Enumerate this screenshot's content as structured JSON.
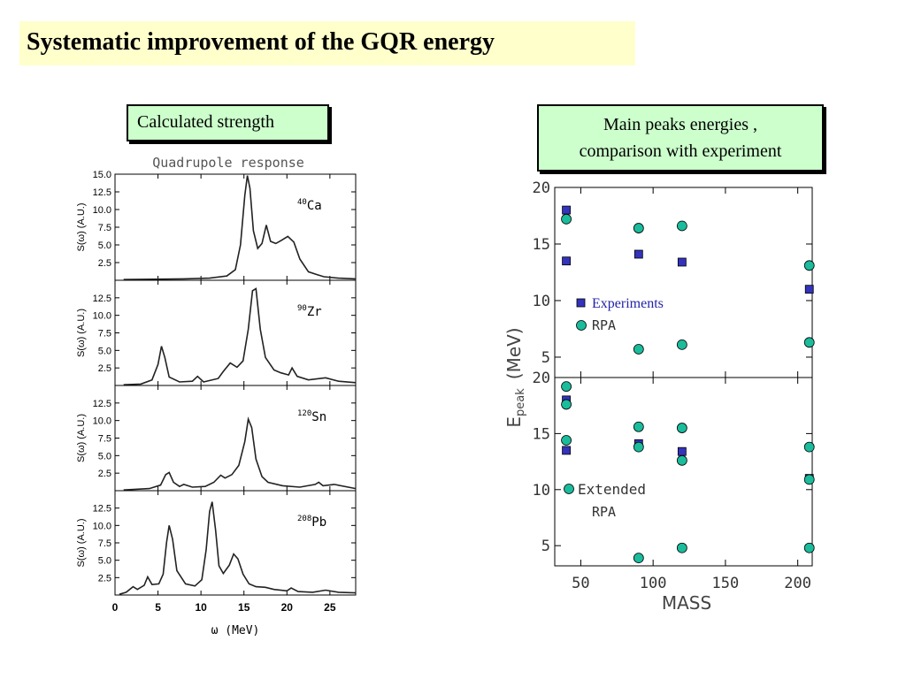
{
  "page": {
    "title": "Systematic improvement of the GQR energy",
    "left_label": "Calculated strength",
    "right_label_line1": "Main peaks energies ,",
    "right_label_line2": "comparison with experiment"
  },
  "chart_data": [
    {
      "type": "line",
      "title": "Quadrupole response",
      "xlabel": "ω (MeV)",
      "ylabel": "S(ω) (A.U.)",
      "xlim": [
        0,
        28
      ],
      "ylim": [
        0,
        15
      ],
      "x_ticks": [
        "0",
        "5",
        "10",
        "15",
        "20",
        "25"
      ],
      "y_ticks": [
        "2.5",
        "5.0",
        "7.5",
        "10.0",
        "12.5",
        "15.0"
      ],
      "panels": [
        {
          "name_sup": "40",
          "name": "Ca",
          "points": [
            [
              1,
              0.1
            ],
            [
              8,
              0.2
            ],
            [
              11,
              0.3
            ],
            [
              13,
              0.6
            ],
            [
              14,
              1.5
            ],
            [
              14.6,
              5
            ],
            [
              15.1,
              12
            ],
            [
              15.4,
              14.8
            ],
            [
              15.7,
              13
            ],
            [
              16.1,
              7
            ],
            [
              16.6,
              4.5
            ],
            [
              17.1,
              5.2
            ],
            [
              17.6,
              7.8
            ],
            [
              18.1,
              5.5
            ],
            [
              18.7,
              5.2
            ],
            [
              19.3,
              5.6
            ],
            [
              20.1,
              6.2
            ],
            [
              20.8,
              5.4
            ],
            [
              21.5,
              3
            ],
            [
              22.5,
              1.2
            ],
            [
              23.5,
              0.8
            ],
            [
              24.3,
              0.5
            ],
            [
              26,
              0.3
            ],
            [
              28,
              0.2
            ]
          ]
        },
        {
          "name_sup": "90",
          "name": "Zr",
          "points": [
            [
              1,
              0.1
            ],
            [
              3,
              0.2
            ],
            [
              4.3,
              0.8
            ],
            [
              5,
              3
            ],
            [
              5.4,
              5.6
            ],
            [
              5.8,
              4
            ],
            [
              6.3,
              1.2
            ],
            [
              7.5,
              0.5
            ],
            [
              9,
              0.6
            ],
            [
              9.6,
              1.3
            ],
            [
              10.3,
              0.5
            ],
            [
              12,
              1
            ],
            [
              12.6,
              2
            ],
            [
              13.4,
              3.2
            ],
            [
              14.2,
              2.6
            ],
            [
              14.9,
              3.5
            ],
            [
              15.5,
              8
            ],
            [
              16.0,
              13.5
            ],
            [
              16.4,
              13.8
            ],
            [
              16.9,
              8
            ],
            [
              17.5,
              4
            ],
            [
              18.5,
              2.2
            ],
            [
              19.3,
              1.8
            ],
            [
              20.2,
              1.5
            ],
            [
              20.6,
              2.5
            ],
            [
              21.2,
              1.3
            ],
            [
              22.5,
              0.8
            ],
            [
              24.5,
              1.1
            ],
            [
              26,
              0.6
            ],
            [
              28,
              0.4
            ]
          ]
        },
        {
          "name_sup": "120",
          "name": "Sn",
          "points": [
            [
              1,
              0.1
            ],
            [
              4,
              0.3
            ],
            [
              5.3,
              0.8
            ],
            [
              5.9,
              2.3
            ],
            [
              6.3,
              2.6
            ],
            [
              6.8,
              1.2
            ],
            [
              7.5,
              0.6
            ],
            [
              8,
              0.9
            ],
            [
              9,
              0.5
            ],
            [
              10.5,
              0.6
            ],
            [
              11.5,
              1.2
            ],
            [
              12.3,
              2.2
            ],
            [
              12.8,
              1.8
            ],
            [
              13.6,
              2.3
            ],
            [
              14.4,
              3.6
            ],
            [
              15.1,
              7
            ],
            [
              15.5,
              10.2
            ],
            [
              15.9,
              9
            ],
            [
              16.4,
              4.5
            ],
            [
              17.1,
              2
            ],
            [
              17.8,
              1.2
            ],
            [
              19.5,
              0.7
            ],
            [
              21.5,
              0.5
            ],
            [
              23.3,
              0.9
            ],
            [
              23.7,
              1.2
            ],
            [
              24.2,
              0.7
            ],
            [
              25.5,
              0.9
            ],
            [
              28,
              0.3
            ]
          ]
        },
        {
          "name_sup": "208",
          "name": "Pb",
          "points": [
            [
              0.5,
              0.1
            ],
            [
              1.3,
              0.4
            ],
            [
              2.1,
              1.2
            ],
            [
              2.6,
              0.8
            ],
            [
              3.4,
              1.4
            ],
            [
              3.8,
              2.6
            ],
            [
              4.3,
              1.5
            ],
            [
              5.1,
              1.6
            ],
            [
              5.6,
              3
            ],
            [
              6,
              7.6
            ],
            [
              6.3,
              10
            ],
            [
              6.7,
              8
            ],
            [
              7.2,
              3.5
            ],
            [
              8.2,
              1.6
            ],
            [
              9.3,
              1.3
            ],
            [
              10.1,
              2.2
            ],
            [
              10.6,
              6.5
            ],
            [
              11.0,
              12
            ],
            [
              11.3,
              13.4
            ],
            [
              11.7,
              9.3
            ],
            [
              12.1,
              4.2
            ],
            [
              12.6,
              3.1
            ],
            [
              13.3,
              4.3
            ],
            [
              13.8,
              5.9
            ],
            [
              14.3,
              5.2
            ],
            [
              14.9,
              3
            ],
            [
              15.6,
              1.6
            ],
            [
              16.4,
              1.2
            ],
            [
              17.5,
              1.1
            ],
            [
              18.5,
              0.8
            ],
            [
              20,
              0.6
            ],
            [
              20.5,
              1
            ],
            [
              21.3,
              0.5
            ],
            [
              23,
              0.4
            ],
            [
              24.5,
              0.7
            ],
            [
              26,
              0.4
            ],
            [
              28,
              0.3
            ]
          ]
        }
      ]
    },
    {
      "type": "scatter",
      "xlabel": "MASS",
      "ylabel_main": "E",
      "ylabel_sub": "peak",
      "ylabel_unit": "(MeV)",
      "xlim": [
        32,
        210
      ],
      "x_ticks": [
        50,
        100,
        150,
        200
      ],
      "panels": [
        {
          "ylim": [
            3.2,
            20
          ],
          "y_ticks": [
            5,
            10,
            15,
            20
          ],
          "legend": [
            {
              "marker": "square",
              "label": "Experiments",
              "color": "#2222aa"
            },
            {
              "marker": "circle",
              "label": "RPA",
              "color": "#333333"
            }
          ],
          "series": [
            {
              "marker": "square",
              "points": [
                [
                  40,
                  18
                ],
                [
                  40,
                  13.5
                ],
                [
                  90,
                  14.1
                ],
                [
                  120,
                  13.4
                ],
                [
                  208,
                  11
                ]
              ]
            },
            {
              "marker": "circle",
              "points": [
                [
                  40,
                  17.2
                ],
                [
                  90,
                  16.4
                ],
                [
                  120,
                  16.6
                ],
                [
                  208,
                  13.1
                ],
                [
                  90,
                  5.7
                ],
                [
                  120,
                  6.1
                ],
                [
                  208,
                  6.3
                ]
              ]
            }
          ]
        },
        {
          "ylim": [
            3.2,
            20
          ],
          "y_ticks": [
            5,
            10,
            15,
            20
          ],
          "legend": [
            {
              "marker": "circle",
              "label": "Extended",
              "color": "#333333"
            },
            {
              "marker": "none",
              "label": "RPA",
              "color": "#333333"
            }
          ],
          "series": [
            {
              "marker": "square",
              "points": [
                [
                  40,
                  18
                ],
                [
                  40,
                  13.5
                ],
                [
                  90,
                  14.1
                ],
                [
                  120,
                  13.4
                ],
                [
                  208,
                  11
                ]
              ]
            },
            {
              "marker": "circle",
              "points": [
                [
                  40,
                  19.2
                ],
                [
                  40,
                  17.6
                ],
                [
                  40,
                  14.4
                ],
                [
                  90,
                  15.6
                ],
                [
                  90,
                  13.8
                ],
                [
                  120,
                  15.5
                ],
                [
                  120,
                  12.6
                ],
                [
                  208,
                  13.8
                ],
                [
                  208,
                  10.9
                ],
                [
                  90,
                  3.9
                ],
                [
                  120,
                  4.8
                ],
                [
                  208,
                  4.8
                ]
              ]
            }
          ]
        }
      ]
    }
  ],
  "colors": {
    "title_bg": "#ffffcc",
    "label_bg": "#ccffcc",
    "marker_square": "#3333bb",
    "marker_circle": "#1abc9c"
  }
}
